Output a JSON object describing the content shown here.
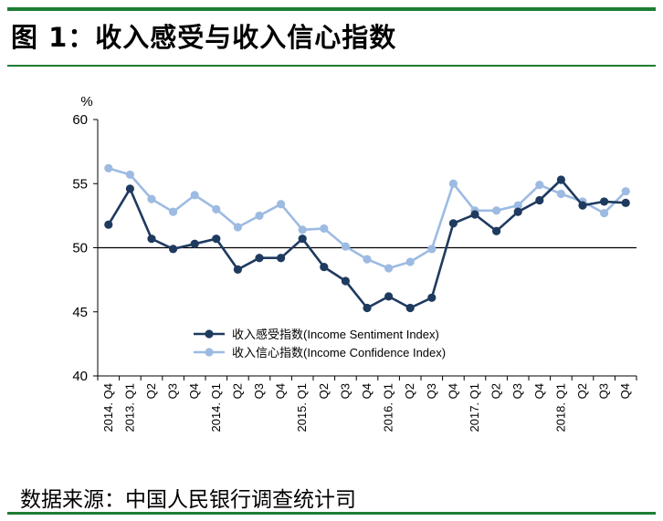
{
  "figure": {
    "title": "图 1：收入感受与收入信心指数",
    "source": "数据来源：中国人民银行调查统计司"
  },
  "chart_data": {
    "type": "line",
    "ylabel": "%",
    "ylim": [
      40,
      60
    ],
    "yticks": [
      40,
      45,
      50,
      55,
      60
    ],
    "reference_line": 50,
    "x": [
      "2014. Q4",
      "2013. Q1",
      "Q2",
      "Q3",
      "Q4",
      "2014. Q1",
      "Q2",
      "Q3",
      "Q4",
      "2015. Q1",
      "Q2",
      "Q3",
      "Q4",
      "2016. Q1",
      "Q2",
      "Q3",
      "Q4",
      "2017. Q1",
      "Q2",
      "Q3",
      "Q4",
      "2018. Q1",
      "Q2",
      "Q3",
      "Q4"
    ],
    "series": [
      {
        "name": "收入感受指数(Income Sentiment Index)",
        "color": "#1f3a5f",
        "values": [
          51.8,
          54.6,
          50.7,
          49.9,
          50.3,
          50.7,
          48.3,
          49.2,
          49.2,
          50.7,
          48.5,
          47.4,
          45.3,
          46.2,
          45.3,
          46.1,
          51.9,
          52.6,
          51.3,
          52.8,
          53.7,
          55.3,
          53.3,
          53.6,
          53.5
        ]
      },
      {
        "name": "收入信心指数(Income Confidence Index)",
        "color": "#9dbbe2",
        "values": [
          56.2,
          55.7,
          53.8,
          52.8,
          54.1,
          53.0,
          51.6,
          52.5,
          53.4,
          51.4,
          51.5,
          50.1,
          49.1,
          48.4,
          48.9,
          49.9,
          55.0,
          52.9,
          52.9,
          53.3,
          54.9,
          54.2,
          53.6,
          52.7,
          54.4
        ]
      }
    ],
    "legend_position": "lower-middle",
    "grid": false
  }
}
